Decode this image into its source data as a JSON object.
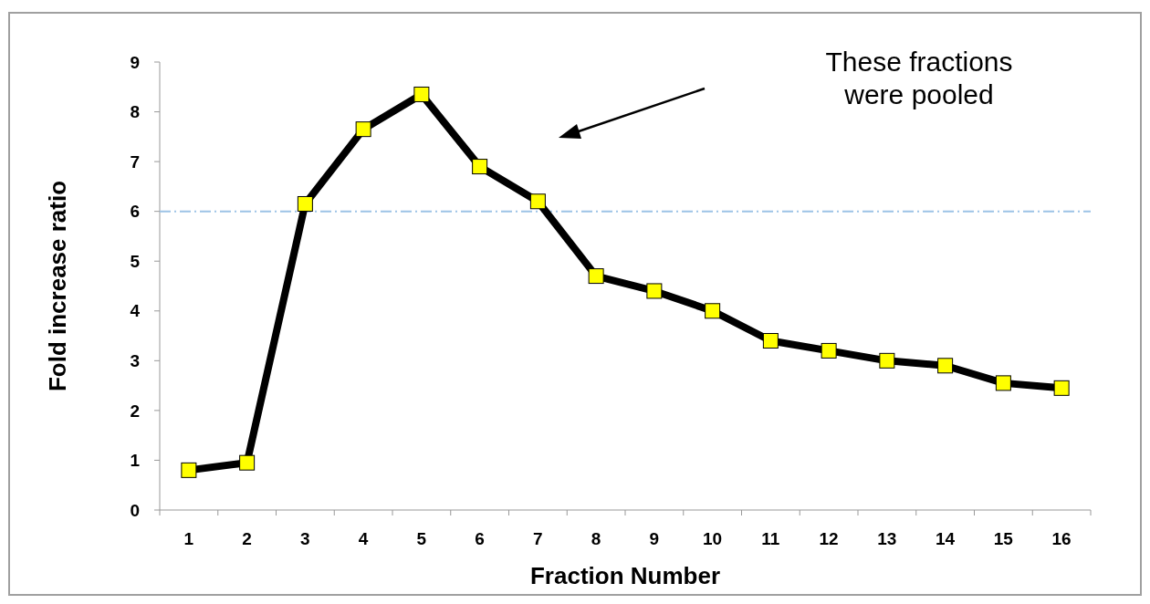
{
  "chart_data": {
    "type": "line",
    "xlabel": "Fraction Number",
    "ylabel": "Fold increase ratio",
    "categories": [
      "1",
      "2",
      "3",
      "4",
      "5",
      "6",
      "7",
      "8",
      "9",
      "10",
      "11",
      "12",
      "13",
      "14",
      "15",
      "16"
    ],
    "series": [
      {
        "color": "#000000",
        "values": [
          0.8,
          0.95,
          6.15,
          7.65,
          8.35,
          6.9,
          6.2,
          4.7,
          4.4,
          4.0,
          3.4,
          3.2,
          3.0,
          2.9,
          2.55,
          2.45
        ]
      }
    ],
    "ylim": [
      0,
      9
    ],
    "yticks": [
      0,
      1,
      2,
      3,
      4,
      5,
      6,
      7,
      8,
      9
    ],
    "grid": false,
    "marker": "square",
    "line_style": "solid",
    "ref_lines": [
      {
        "axis": "y",
        "value": 6,
        "color": "#9dc3e6",
        "line_style": "dashed"
      }
    ],
    "annotations": [
      "These fractions were pooled"
    ]
  }
}
